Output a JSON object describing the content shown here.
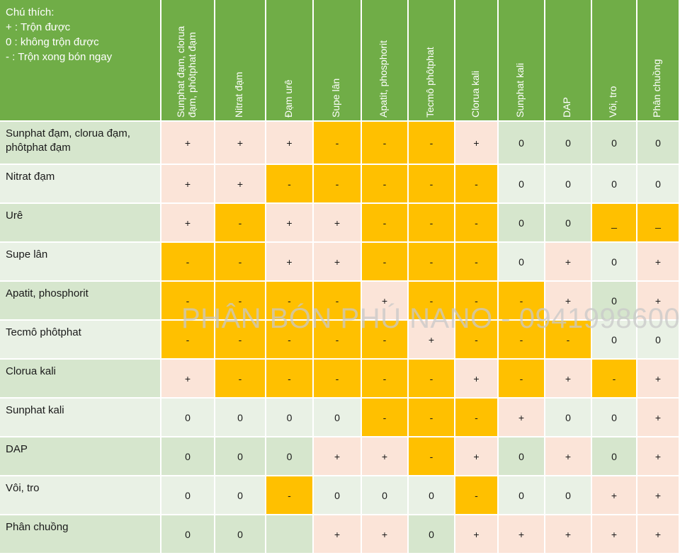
{
  "legend": [
    "Chú thích:",
    "+ : Trộn được",
    "0 : không trộn được",
    "- : Trộn xong bón ngay"
  ],
  "columns": [
    "Sunphat đạm, clorua đạm, phôtphat đạm",
    "Nitrat đạm",
    "Đạm urê",
    "Supe lân",
    "Apatit, phosphorit",
    "Tecmô phôtphat",
    "Clorua kali",
    "Sunphat kali",
    "DAP",
    "Vôi, tro",
    "Phân chuồng"
  ],
  "rows": [
    {
      "label": "Sunphat đạm, clorua đạm, phôtphat đạm",
      "cells": [
        "+",
        "+",
        "+",
        "-",
        "-",
        "-",
        "+",
        "0",
        "0",
        "0",
        "0"
      ]
    },
    {
      "label": "Nitrat đạm",
      "cells": [
        "+",
        "+",
        "-",
        "-",
        "-",
        "-",
        "-",
        "0",
        "0",
        "0",
        "0"
      ]
    },
    {
      "label": "Urê",
      "cells": [
        "+",
        "-",
        "+",
        "+",
        "-",
        "-",
        "-",
        "0",
        "0",
        "_",
        "_"
      ]
    },
    {
      "label": "Supe lân",
      "cells": [
        "-",
        "-",
        "+",
        "+",
        "-",
        "-",
        "-",
        "0",
        "+",
        "0",
        "+"
      ]
    },
    {
      "label": "Apatit, phosphorit",
      "cells": [
        "-",
        "-",
        "-",
        "-",
        "+",
        "-",
        "-",
        "-",
        "+",
        "0",
        "+"
      ]
    },
    {
      "label": "Tecmô phôtphat",
      "cells": [
        "-",
        "-",
        "-",
        "-",
        "-",
        "+",
        "-",
        "-",
        "-",
        "0",
        "0"
      ]
    },
    {
      "label": "Clorua kali",
      "cells": [
        "+",
        "-",
        "-",
        "-",
        "-",
        "-",
        "+",
        "-",
        "+",
        "-",
        "+"
      ]
    },
    {
      "label": "Sunphat kali",
      "cells": [
        "0",
        "0",
        "0",
        "0",
        "-",
        "-",
        "-",
        "+",
        "0",
        "0",
        "+"
      ]
    },
    {
      "label": "DAP",
      "cells": [
        "0",
        "0",
        "0",
        "+",
        "+",
        "-",
        "+",
        "0",
        "+",
        "0",
        "+"
      ]
    },
    {
      "label": "Vôi, tro",
      "cells": [
        "0",
        "0",
        "-",
        "0",
        "0",
        "0",
        "-",
        "0",
        "0",
        "+",
        "+"
      ]
    },
    {
      "label": "Phân chuồng",
      "cells": [
        "0",
        "0",
        "",
        "+",
        "+",
        "0",
        "+",
        "+",
        "+",
        "+",
        "+"
      ]
    }
  ],
  "watermark": "PHÂN BÓN PHÚ NANO - 0941998600",
  "colors": {
    "header_green": "#70ad47",
    "mix_ok": "#fbe4d8",
    "mix_now": "#ffc000",
    "no_mix_dark": "#d6e6cd",
    "no_mix_light": "#e9f1e5"
  }
}
